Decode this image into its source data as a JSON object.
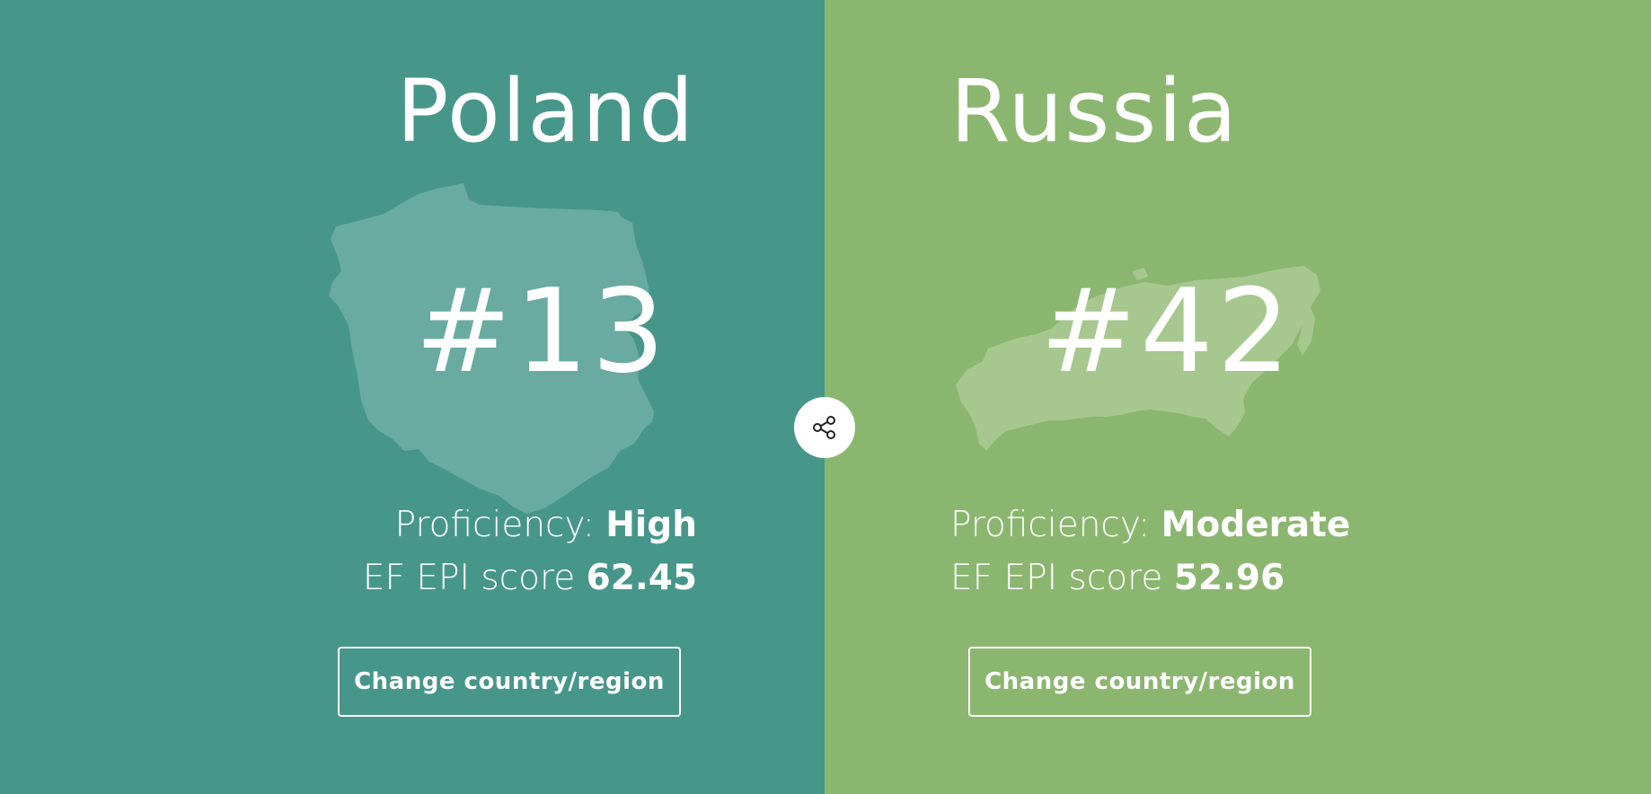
{
  "left": {
    "country": "Poland",
    "rank": "#13",
    "proficiency_label": "Proficiency:",
    "proficiency_value": "High",
    "score_label": "EF EPI score",
    "score_value": "62.45",
    "button_label": "Change country/region",
    "background_color": "#47968a",
    "map_icon": "poland-map-icon"
  },
  "right": {
    "country": "Russia",
    "rank": "#42",
    "proficiency_label": "Proficiency:",
    "proficiency_value": "Moderate",
    "score_label": "EF EPI score",
    "score_value": "52.96",
    "button_label": "Change country/region",
    "background_color": "#8bb66f",
    "map_icon": "russia-map-icon"
  },
  "share": {
    "icon": "share-icon"
  }
}
